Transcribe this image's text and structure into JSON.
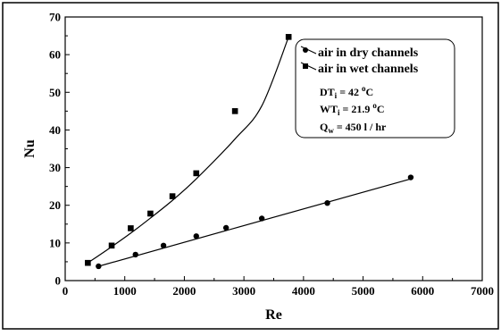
{
  "chart_data": {
    "type": "scatter",
    "title": "",
    "xlabel": "Re",
    "ylabel": "Nu",
    "xlim": [
      0,
      7000
    ],
    "ylim": [
      0,
      70
    ],
    "xticks": [
      0,
      1000,
      2000,
      3000,
      4000,
      5000,
      6000,
      7000
    ],
    "yticks": [
      0,
      10,
      20,
      30,
      40,
      50,
      60,
      70
    ],
    "grid": false,
    "legend_position": "top-right",
    "series": [
      {
        "name": "air in dry channels",
        "marker": "circle",
        "color": "#000000",
        "fit": "linear",
        "points": [
          {
            "x": 560,
            "y": 3.8
          },
          {
            "x": 1180,
            "y": 6.9
          },
          {
            "x": 1650,
            "y": 9.3
          },
          {
            "x": 2200,
            "y": 11.8
          },
          {
            "x": 2700,
            "y": 14.0
          },
          {
            "x": 3300,
            "y": 16.5
          },
          {
            "x": 4400,
            "y": 20.6
          },
          {
            "x": 5800,
            "y": 27.4
          }
        ],
        "fit_line": [
          [
            560,
            3.8
          ],
          [
            5800,
            27.0
          ]
        ]
      },
      {
        "name": "air in wet channels",
        "marker": "square",
        "color": "#000000",
        "fit": "curve",
        "points": [
          {
            "x": 380,
            "y": 4.7
          },
          {
            "x": 780,
            "y": 9.3
          },
          {
            "x": 1100,
            "y": 13.9
          },
          {
            "x": 1430,
            "y": 17.8
          },
          {
            "x": 1800,
            "y": 22.4
          },
          {
            "x": 2200,
            "y": 28.5
          },
          {
            "x": 2850,
            "y": 45.0
          },
          {
            "x": 3750,
            "y": 64.7
          }
        ],
        "fit_line": [
          [
            380,
            4.7
          ],
          [
            780,
            9.0
          ],
          [
            1100,
            12.6
          ],
          [
            1430,
            16.6
          ],
          [
            1800,
            21.3
          ],
          [
            2200,
            27.0
          ],
          [
            2850,
            37.6
          ],
          [
            3300,
            46.4
          ],
          [
            3750,
            64.7
          ]
        ]
      }
    ],
    "annotations": [
      {
        "main": "DT",
        "sub": "i",
        "rest": " = 42 ",
        "sup": "o",
        "unit": "C"
      },
      {
        "main": "WT",
        "sub": "i",
        "rest": " = 21.9 ",
        "sup": "o",
        "unit": "C"
      },
      {
        "main": "Q",
        "sub": "w",
        "rest": " = 450 l / hr",
        "sup": "",
        "unit": ""
      }
    ]
  }
}
